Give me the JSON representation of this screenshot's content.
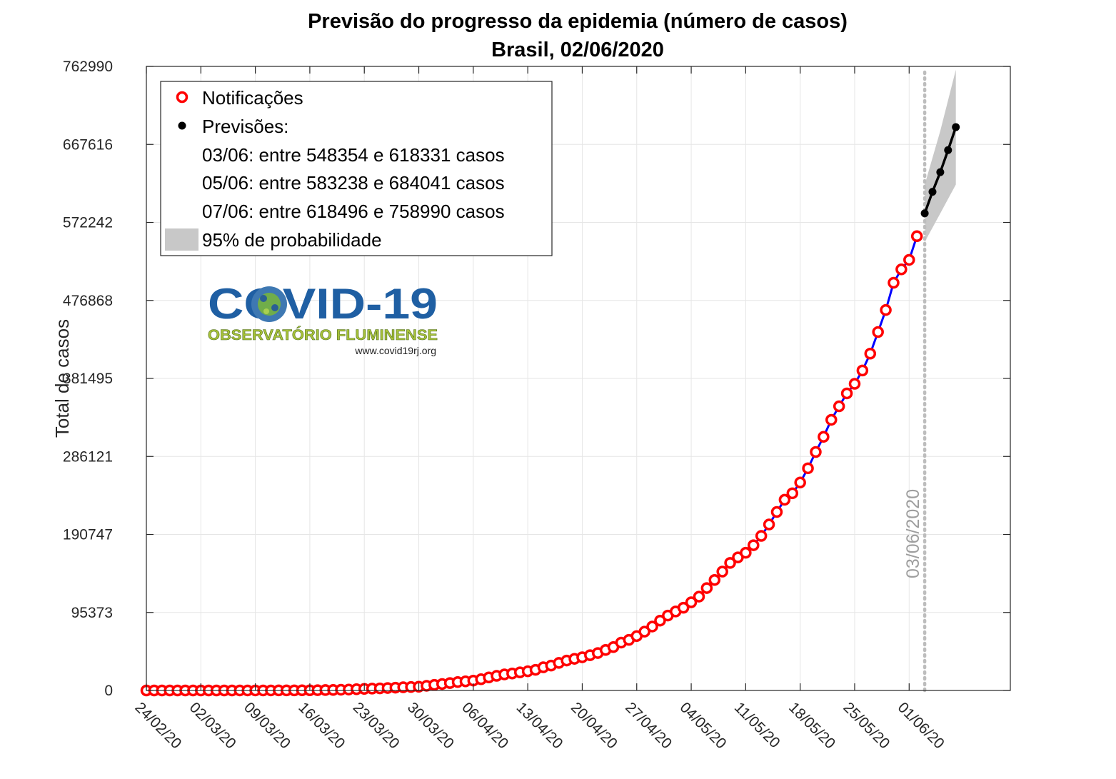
{
  "chart_data": {
    "type": "line",
    "title": "Previsão do progresso da epidemia (número de casos)",
    "subtitle": "Brasil, 02/06/2020",
    "xlabel": "",
    "ylabel": "Total de casos",
    "grid": true,
    "legend_position": "top-left",
    "y_ticks": [
      "0",
      "95373",
      "190747",
      "286121",
      "381495",
      "476868",
      "572242",
      "667616",
      "762990"
    ],
    "y_tick_values": [
      0,
      95373,
      190747,
      286121,
      381495,
      476868,
      572242,
      667616,
      762990
    ],
    "ylim": [
      0,
      762990
    ],
    "x_ticks": [
      "24/02/20",
      "02/03/20",
      "09/03/20",
      "16/03/20",
      "23/03/20",
      "30/03/20",
      "06/04/20",
      "13/04/20",
      "20/04/20",
      "27/04/20",
      "04/05/20",
      "11/05/20",
      "18/05/20",
      "25/05/20",
      "01/06/20"
    ],
    "xlim": [
      "24/02/20",
      "14/06/20"
    ],
    "forecast_date_line": {
      "date": "03/06/20",
      "label": "03/06/2020"
    },
    "series": [
      {
        "name": "Notificações",
        "color": "#ff0000",
        "line_color": "#0000ff",
        "x": [
          "24/02/20",
          "25/02/20",
          "26/02/20",
          "27/02/20",
          "28/02/20",
          "29/02/20",
          "01/03/20",
          "02/03/20",
          "03/03/20",
          "04/03/20",
          "05/03/20",
          "06/03/20",
          "07/03/20",
          "08/03/20",
          "09/03/20",
          "10/03/20",
          "11/03/20",
          "12/03/20",
          "13/03/20",
          "14/03/20",
          "15/03/20",
          "16/03/20",
          "17/03/20",
          "18/03/20",
          "19/03/20",
          "20/03/20",
          "21/03/20",
          "22/03/20",
          "23/03/20",
          "24/03/20",
          "25/03/20",
          "26/03/20",
          "27/03/20",
          "28/03/20",
          "29/03/20",
          "30/03/20",
          "31/03/20",
          "01/04/20",
          "02/04/20",
          "03/04/20",
          "04/04/20",
          "05/04/20",
          "06/04/20",
          "07/04/20",
          "08/04/20",
          "09/04/20",
          "10/04/20",
          "11/04/20",
          "12/04/20",
          "13/04/20",
          "14/04/20",
          "15/04/20",
          "16/04/20",
          "17/04/20",
          "18/04/20",
          "19/04/20",
          "20/04/20",
          "21/04/20",
          "22/04/20",
          "23/04/20",
          "24/04/20",
          "25/04/20",
          "26/04/20",
          "27/04/20",
          "28/04/20",
          "29/04/20",
          "30/04/20",
          "01/05/20",
          "02/05/20",
          "03/05/20",
          "04/05/20",
          "05/05/20",
          "06/05/20",
          "07/05/20",
          "08/05/20",
          "09/05/20",
          "10/05/20",
          "11/05/20",
          "12/05/20",
          "13/05/20",
          "14/05/20",
          "15/05/20",
          "16/05/20",
          "17/05/20",
          "18/05/20",
          "19/05/20",
          "20/05/20",
          "21/05/20",
          "22/05/20",
          "23/05/20",
          "24/05/20",
          "25/05/20",
          "26/05/20",
          "27/05/20",
          "28/05/20",
          "29/05/20",
          "30/05/20",
          "31/05/20",
          "01/06/20",
          "02/06/20"
        ],
        "values": [
          1,
          1,
          1,
          1,
          1,
          2,
          2,
          2,
          3,
          4,
          8,
          13,
          19,
          25,
          25,
          34,
          52,
          77,
          98,
          121,
          200,
          234,
          346,
          529,
          640,
          904,
          1128,
          1546,
          1924,
          2247,
          2554,
          2985,
          3417,
          3904,
          4256,
          4579,
          5717,
          6836,
          7910,
          9056,
          10278,
          11130,
          12056,
          13717,
          15927,
          17857,
          19638,
          20727,
          22169,
          23430,
          25262,
          28320,
          30425,
          33682,
          36599,
          38654,
          40581,
          43079,
          45757,
          49492,
          52995,
          58509,
          61888,
          66501,
          71886,
          78162,
          85380,
          91589,
          96559,
          101147,
          107780,
          114715,
          125218,
          135106,
          145328,
          155939,
          162699,
          168331,
          177589,
          188974,
          202918,
          218223,
          233142,
          241080,
          254220,
          271628,
          291579,
          310087,
          330890,
          347398,
          363211,
          374898,
          391222,
          411821,
          438238,
          465166,
          498440,
          514849,
          526447,
          555383
        ]
      },
      {
        "name": "Previsões:",
        "color": "#000000",
        "x": [
          "03/06/20",
          "04/06/20",
          "05/06/20",
          "06/06/20",
          "07/06/20"
        ],
        "values": [
          583343,
          609700,
          633640,
          660600,
          688743
        ],
        "ci_low": [
          548354,
          565800,
          583238,
          600900,
          618496
        ],
        "ci_high": [
          618331,
          651200,
          684041,
          721500,
          758990
        ]
      }
    ],
    "legend": {
      "observed": "Notificações",
      "forecast": "Previsões:",
      "forecast_lines": [
        "03/06: entre 548354 e 618331 casos",
        "05/06: entre 583238 e 684041 casos",
        "07/06: entre 618496 e 758990 casos"
      ],
      "ci": "95% de probabilidade"
    }
  },
  "logo": {
    "title": "COVID-19",
    "subtitle": "OBSERVATÓRIO FLUMINENSE",
    "url": "www.covid19rj.org"
  },
  "colors": {
    "observed_marker": "#ff0000",
    "observed_line": "#0000ff",
    "forecast": "#000000",
    "ci_band": "#c8c8c8",
    "grid": "#e6e6e6",
    "vline": "#bdbdbd"
  }
}
